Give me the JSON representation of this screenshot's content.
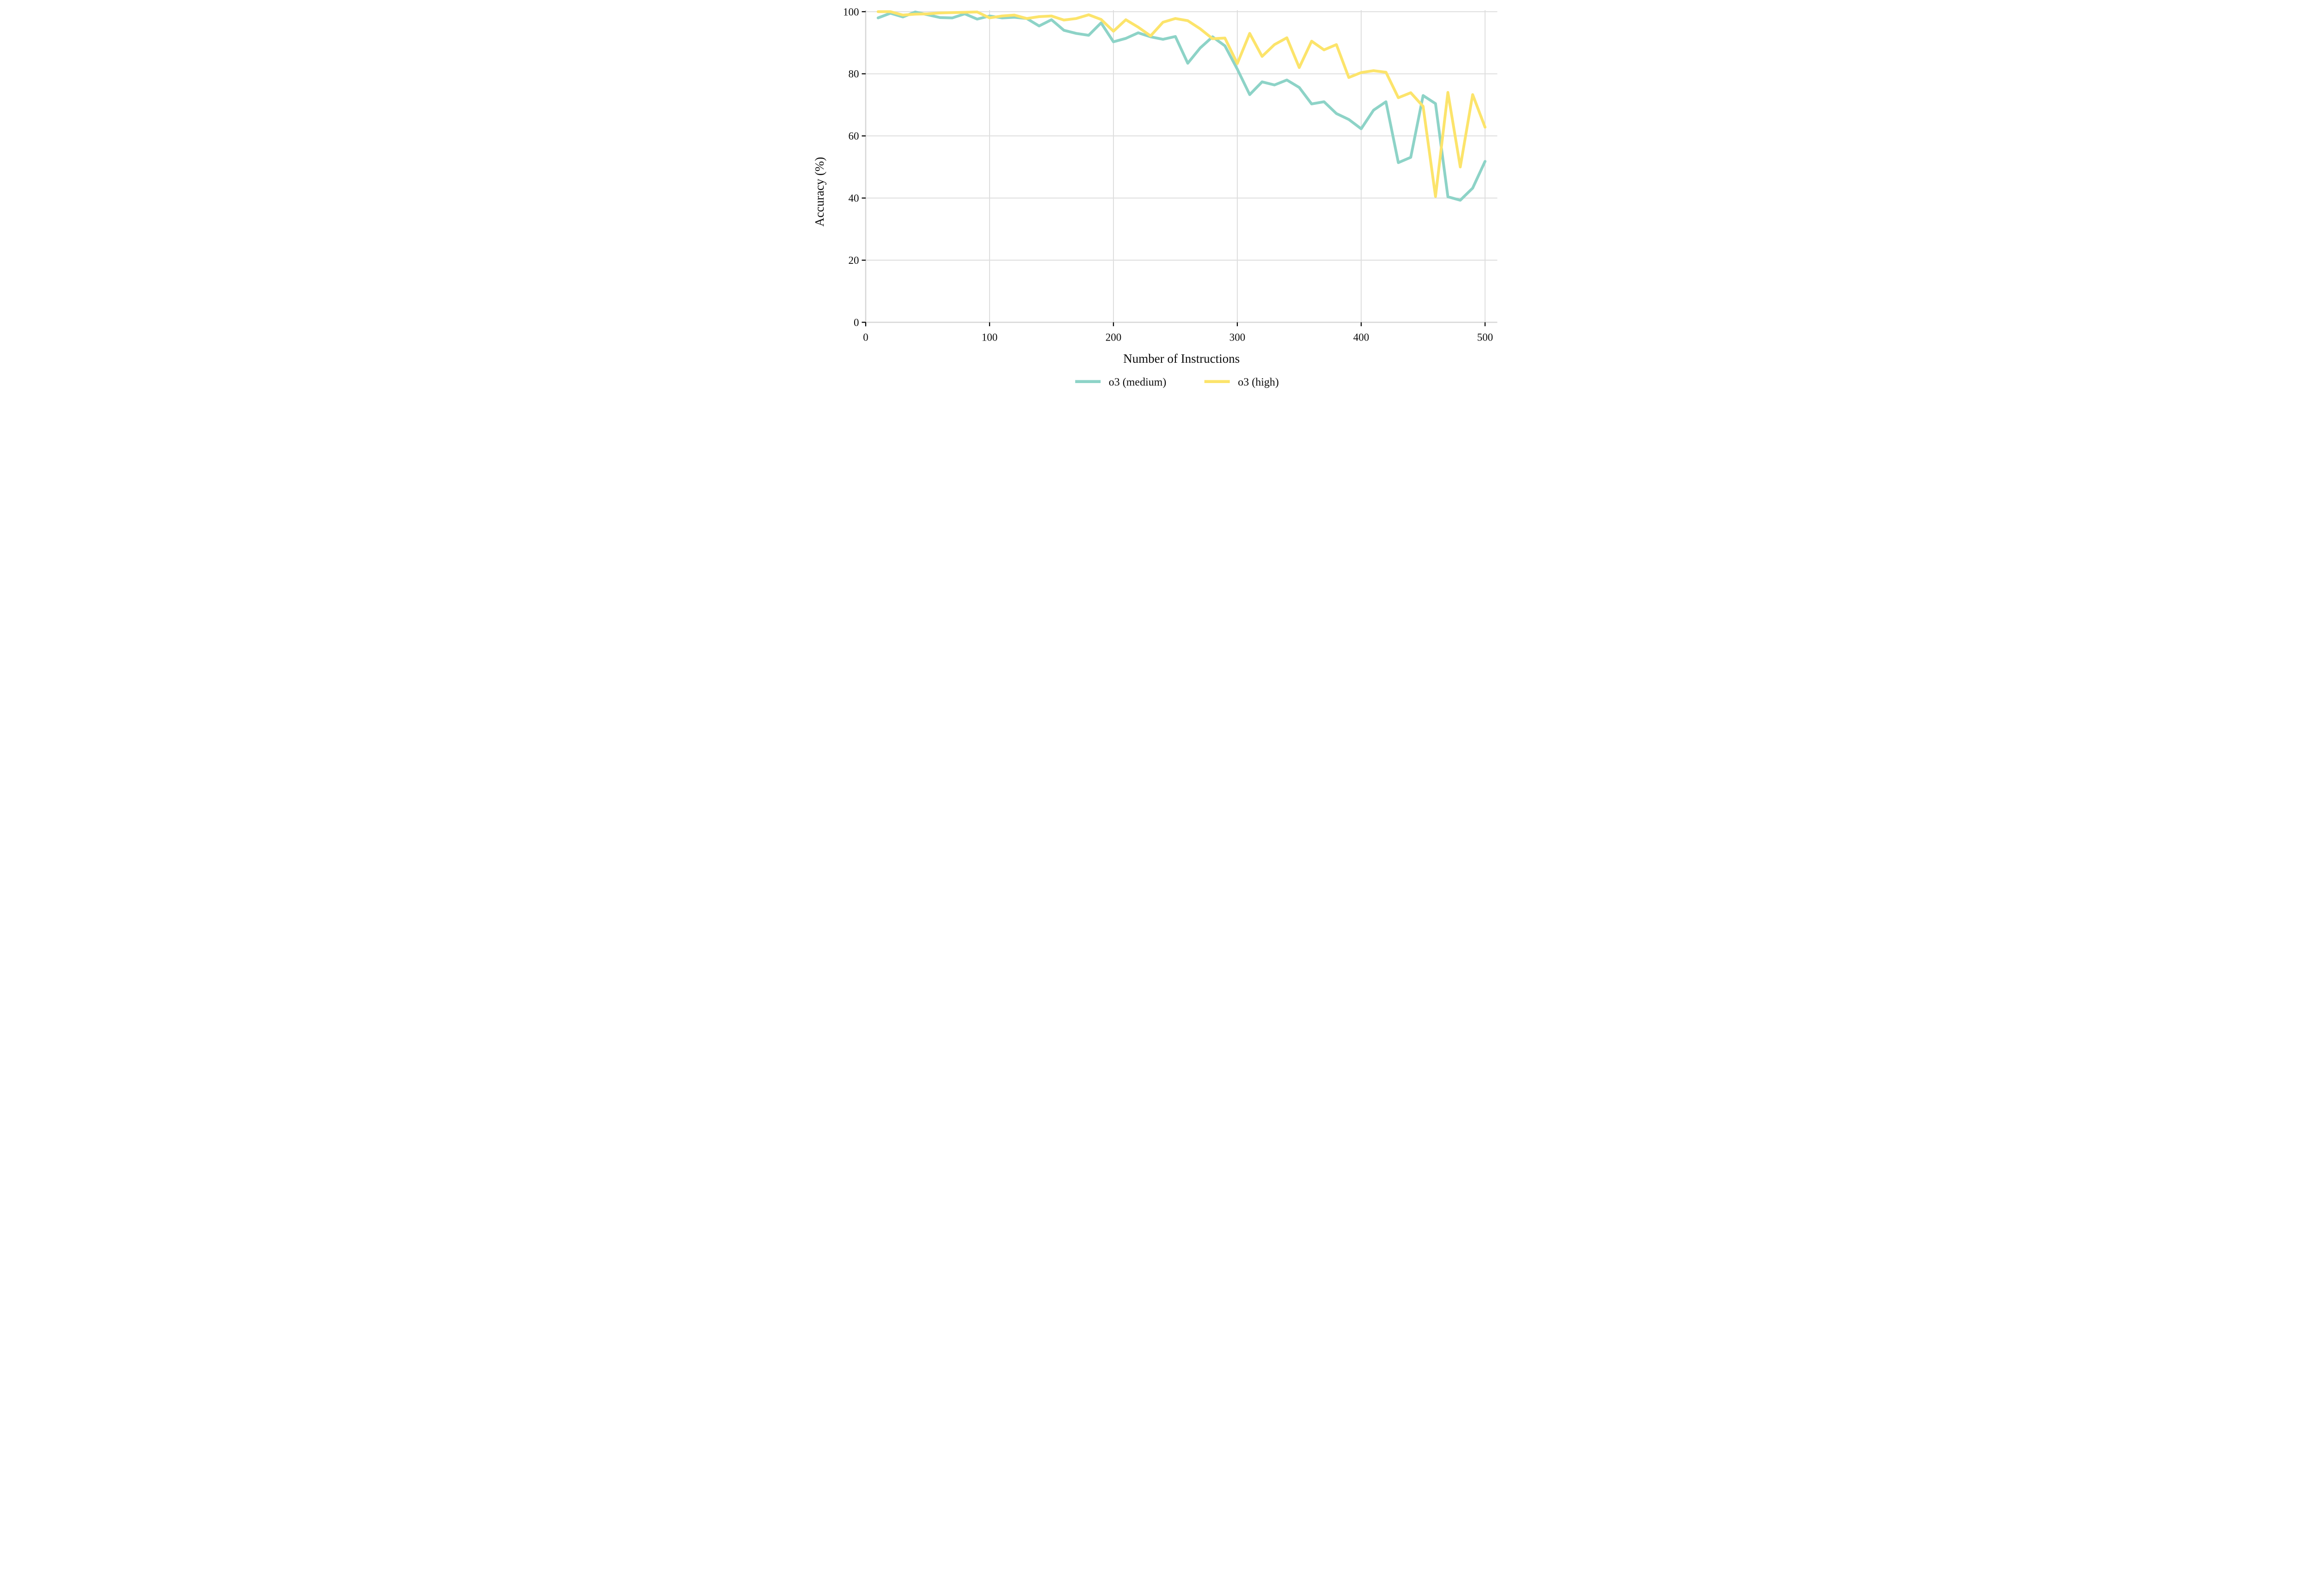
{
  "chart_data": {
    "type": "line",
    "title": "",
    "xlabel": "Number of Instructions",
    "ylabel": "Accuracy (%)",
    "xlim": [
      0,
      500
    ],
    "ylim": [
      0,
      100
    ],
    "xticks": [
      0,
      100,
      200,
      300,
      400,
      500
    ],
    "yticks": [
      0,
      20,
      40,
      60,
      80,
      100
    ],
    "grid": true,
    "legend_position": "bottom",
    "x": [
      10,
      20,
      30,
      40,
      50,
      60,
      70,
      80,
      90,
      100,
      110,
      120,
      130,
      140,
      150,
      160,
      170,
      180,
      190,
      200,
      210,
      220,
      230,
      240,
      250,
      260,
      270,
      280,
      290,
      300,
      310,
      320,
      330,
      340,
      350,
      360,
      370,
      380,
      390,
      400,
      410,
      420,
      430,
      440,
      450,
      460,
      470,
      480,
      490,
      500
    ],
    "series": [
      {
        "name": "o3 (medium)",
        "color": "#8DD3C7",
        "values": [
          98.0,
          99.5,
          98.3,
          99.9,
          99.0,
          98.1,
          98.0,
          99.3,
          97.6,
          98.6,
          98.0,
          98.2,
          97.8,
          95.4,
          97.4,
          94.0,
          93.0,
          92.4,
          96.4,
          90.3,
          91.4,
          93.2,
          91.9,
          91.1,
          92.0,
          83.4,
          88.3,
          91.9,
          89.0,
          81.5,
          73.3,
          77.4,
          76.4,
          78.0,
          75.6,
          70.3,
          71.0,
          67.2,
          65.3,
          62.3,
          68.3,
          71.0,
          51.4,
          53.1,
          73.0,
          70.4,
          40.4,
          39.3,
          43.2,
          51.8
        ]
      },
      {
        "name": "o3 (high)",
        "color": "#FCE46B",
        "values": [
          100.0,
          100.0,
          98.9,
          99.2,
          99.3,
          99.6,
          99.7,
          99.8,
          99.9,
          98.0,
          98.6,
          98.9,
          97.8,
          98.4,
          98.6,
          97.3,
          97.8,
          99.0,
          97.5,
          93.7,
          97.4,
          95.0,
          92.2,
          96.6,
          97.8,
          97.1,
          94.5,
          91.3,
          91.5,
          83.3,
          93.0,
          85.6,
          89.4,
          91.6,
          82.0,
          90.5,
          87.7,
          89.4,
          78.8,
          80.4,
          81.0,
          80.5,
          72.3,
          73.9,
          69.5,
          40.5,
          74.0,
          50.0,
          73.3,
          62.8
        ]
      }
    ]
  }
}
